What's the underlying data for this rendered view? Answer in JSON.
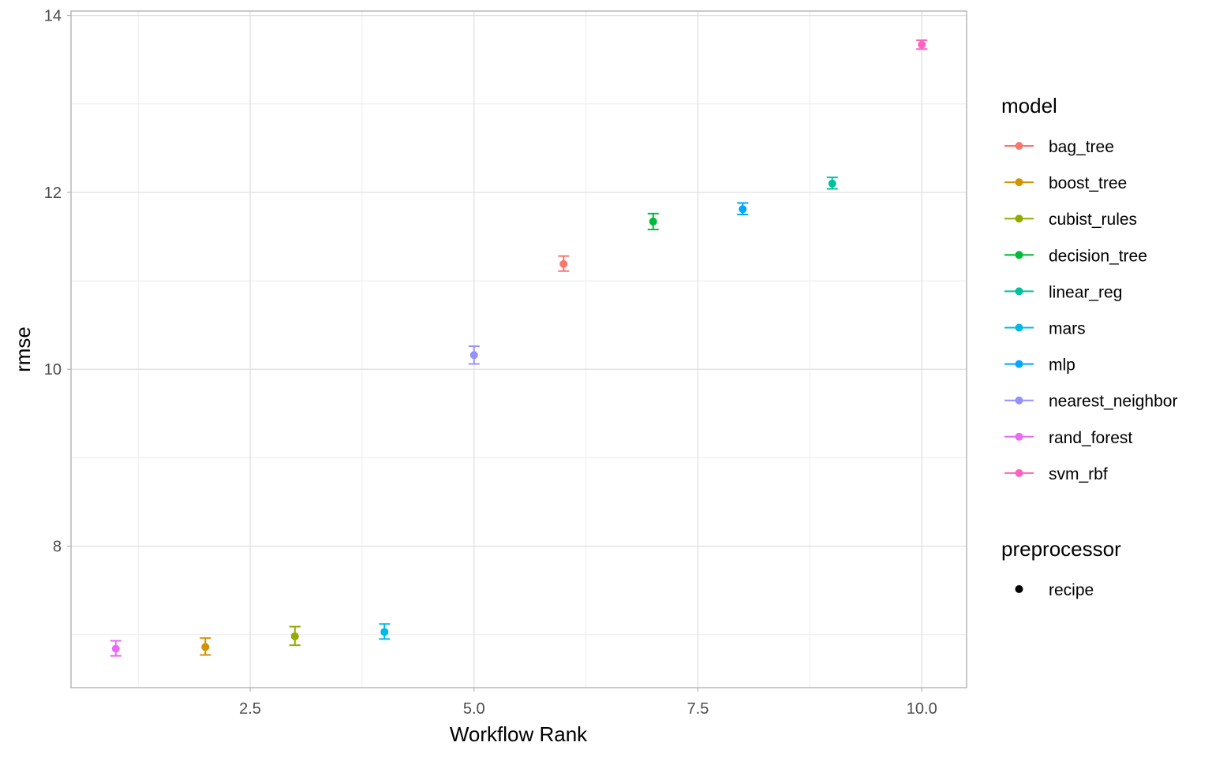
{
  "chart_data": {
    "type": "scatter",
    "xlabel": "Workflow Rank",
    "ylabel": "rmse",
    "xlim": [
      0.5,
      10.5
    ],
    "ylim": [
      6.4,
      14.05
    ],
    "x_ticks": [
      {
        "value": 2.5,
        "label": "2.5"
      },
      {
        "value": 5.0,
        "label": "5.0"
      },
      {
        "value": 7.5,
        "label": "7.5"
      },
      {
        "value": 10.0,
        "label": "10.0"
      }
    ],
    "y_ticks": [
      {
        "value": 8,
        "label": "8"
      },
      {
        "value": 10,
        "label": "10"
      },
      {
        "value": 12,
        "label": "12"
      },
      {
        "value": 14,
        "label": "14"
      }
    ],
    "x_minor": [
      1.25,
      3.75,
      6.25,
      8.75
    ],
    "y_minor": [
      7,
      9,
      11,
      13
    ],
    "grid": true,
    "legend_placement": "right",
    "series": [
      {
        "name": "bag_tree",
        "color": "#F8766D",
        "x": 6,
        "y": 11.19,
        "lower": 11.11,
        "upper": 11.28
      },
      {
        "name": "boost_tree",
        "color": "#D39200",
        "x": 2,
        "y": 6.86,
        "lower": 6.77,
        "upper": 6.96
      },
      {
        "name": "cubist_rules",
        "color": "#93AA00",
        "x": 3,
        "y": 6.98,
        "lower": 6.88,
        "upper": 7.09
      },
      {
        "name": "decision_tree",
        "color": "#00BA38",
        "x": 7,
        "y": 11.67,
        "lower": 11.58,
        "upper": 11.76
      },
      {
        "name": "linear_reg",
        "color": "#00C19F",
        "x": 9,
        "y": 12.1,
        "lower": 12.04,
        "upper": 12.17
      },
      {
        "name": "mars",
        "color": "#00B9E3",
        "x": 4,
        "y": 7.03,
        "lower": 6.95,
        "upper": 7.12
      },
      {
        "name": "mlp",
        "color": "#00A6FF",
        "x": 8,
        "y": 11.81,
        "lower": 11.75,
        "upper": 11.88
      },
      {
        "name": "nearest_neighbor",
        "color": "#9590FF",
        "x": 5,
        "y": 10.16,
        "lower": 10.06,
        "upper": 10.26
      },
      {
        "name": "rand_forest",
        "color": "#E76BF3",
        "x": 1,
        "y": 6.84,
        "lower": 6.76,
        "upper": 6.93
      },
      {
        "name": "svm_rbf",
        "color": "#FF62BC",
        "x": 10,
        "y": 13.67,
        "lower": 13.62,
        "upper": 13.72
      }
    ]
  },
  "legend": {
    "model_title": "model",
    "preprocessor_title": "preprocessor",
    "preprocessor_items": [
      {
        "label": "recipe",
        "color": "#000000"
      }
    ]
  }
}
